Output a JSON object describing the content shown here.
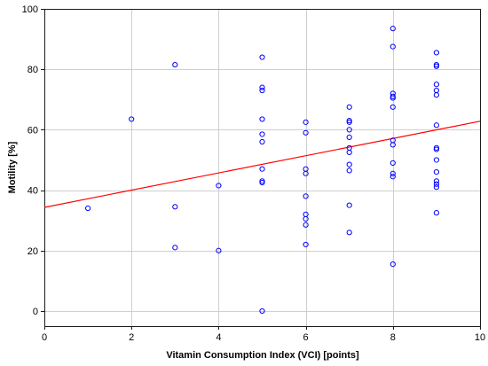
{
  "chart_data": {
    "type": "scatter",
    "title": "",
    "xlabel": "Vitamin Consumption Index (VCI) [points]",
    "ylabel": "Motility [%]",
    "xlim": [
      0,
      10
    ],
    "ylim": [
      -5,
      100
    ],
    "xticks": [
      0,
      2,
      4,
      6,
      8,
      10
    ],
    "yticks": [
      0,
      20,
      40,
      60,
      80,
      100
    ],
    "grid": true,
    "series": [
      {
        "color": "#0000ff",
        "marker": "open-circle",
        "points": [
          [
            1,
            34
          ],
          [
            2,
            63.5
          ],
          [
            3,
            81.5
          ],
          [
            3,
            34.5
          ],
          [
            3,
            21
          ],
          [
            4,
            41.5
          ],
          [
            4,
            20
          ],
          [
            5,
            84
          ],
          [
            5,
            74
          ],
          [
            5,
            73
          ],
          [
            5,
            63.5
          ],
          [
            5,
            58.5
          ],
          [
            5,
            56
          ],
          [
            5,
            47
          ],
          [
            5,
            43
          ],
          [
            5,
            42.5
          ],
          [
            5,
            0
          ],
          [
            6,
            62.5
          ],
          [
            6,
            59
          ],
          [
            6,
            47
          ],
          [
            6,
            45.5
          ],
          [
            6,
            38
          ],
          [
            6,
            32
          ],
          [
            6,
            30.5
          ],
          [
            6,
            28.5
          ],
          [
            6,
            22
          ],
          [
            7,
            67.5
          ],
          [
            7,
            63
          ],
          [
            7,
            62.5
          ],
          [
            7,
            60
          ],
          [
            7,
            57.5
          ],
          [
            7,
            54
          ],
          [
            7,
            52.5
          ],
          [
            7,
            48.5
          ],
          [
            7,
            46.5
          ],
          [
            7,
            35
          ],
          [
            7,
            26
          ],
          [
            8,
            93.5
          ],
          [
            8,
            87.5
          ],
          [
            8,
            72
          ],
          [
            8,
            71
          ],
          [
            8,
            70.5
          ],
          [
            8,
            67.5
          ],
          [
            8,
            56.5
          ],
          [
            8,
            55
          ],
          [
            8,
            49
          ],
          [
            8,
            45.5
          ],
          [
            8,
            44.5
          ],
          [
            8,
            15.5
          ],
          [
            9,
            85.5
          ],
          [
            9,
            81.5
          ],
          [
            9,
            81
          ],
          [
            9,
            75
          ],
          [
            9,
            73
          ],
          [
            9,
            71.5
          ],
          [
            9,
            61.5
          ],
          [
            9,
            54
          ],
          [
            9,
            53.5
          ],
          [
            9,
            50
          ],
          [
            9,
            46
          ],
          [
            9,
            43
          ],
          [
            9,
            42
          ],
          [
            9,
            41
          ],
          [
            9,
            32.5
          ]
        ]
      }
    ],
    "fit_line": {
      "x": [
        0,
        10
      ],
      "y": [
        34.3,
        62.8
      ],
      "color": "#ff0000"
    }
  }
}
